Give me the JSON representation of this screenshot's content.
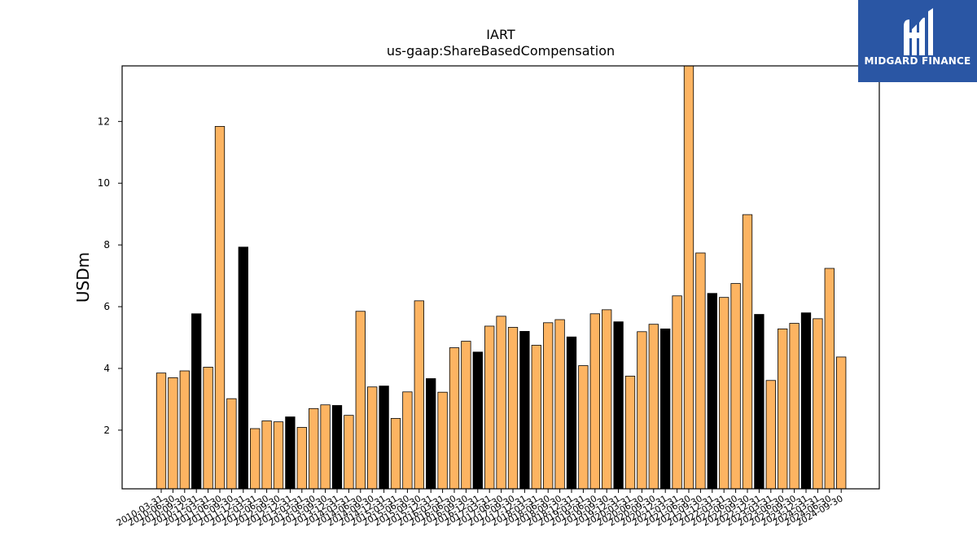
{
  "chart_data": {
    "type": "bar",
    "title": "IART",
    "subtitle": "us-gaap:ShareBasedCompensation",
    "xlabel": "",
    "ylabel": "USDm",
    "ylim": [
      0.1,
      13.8
    ],
    "yticks": [
      2,
      4,
      6,
      8,
      10,
      12
    ],
    "grid": false,
    "legend": "none",
    "colors": {
      "quarter": "#fdb462",
      "year_end": "#000000",
      "edge": "#000000"
    },
    "categories": [
      "2010-03-31",
      "2010-06-30",
      "2010-09-30",
      "2010-12-31",
      "2011-03-31",
      "2011-06-30",
      "2011-09-30",
      "2011-12-31",
      "2012-03-31",
      "2012-06-30",
      "2012-09-30",
      "2012-12-31",
      "2013-03-31",
      "2013-06-30",
      "2013-09-30",
      "2013-12-31",
      "2014-03-31",
      "2014-06-30",
      "2014-09-30",
      "2014-12-31",
      "2015-03-31",
      "2015-06-30",
      "2015-09-30",
      "2015-12-31",
      "2016-03-31",
      "2016-06-30",
      "2016-09-30",
      "2016-12-31",
      "2017-03-31",
      "2017-06-30",
      "2017-09-30",
      "2017-12-31",
      "2018-03-31",
      "2018-06-30",
      "2018-09-30",
      "2018-12-31",
      "2019-03-31",
      "2019-06-30",
      "2019-09-30",
      "2019-12-31",
      "2020-03-31",
      "2020-06-30",
      "2020-09-30",
      "2020-12-31",
      "2021-03-31",
      "2021-06-30",
      "2021-09-30",
      "2021-12-31",
      "2022-03-31",
      "2022-06-30",
      "2022-09-30",
      "2022-12-31",
      "2023-03-31",
      "2023-06-30",
      "2023-09-30",
      "2023-12-31",
      "2024-03-31",
      "2024-06-30",
      "2024-09-30"
    ],
    "values": [
      3.85,
      3.7,
      3.92,
      5.77,
      4.04,
      11.84,
      3.02,
      7.93,
      2.05,
      2.3,
      2.27,
      2.43,
      2.09,
      2.7,
      2.82,
      2.8,
      2.48,
      5.85,
      3.4,
      3.43,
      2.38,
      3.24,
      6.19,
      3.67,
      3.23,
      4.67,
      4.88,
      4.53,
      5.37,
      5.69,
      5.33,
      5.2,
      4.75,
      5.48,
      5.58,
      5.02,
      4.09,
      5.77,
      5.9,
      5.51,
      3.75,
      5.19,
      5.43,
      5.28,
      6.35,
      13.8,
      7.74,
      6.43,
      6.3,
      6.75,
      8.98,
      5.75,
      3.61,
      5.28,
      5.46,
      5.8,
      5.61,
      7.24,
      4.37
    ]
  },
  "logo": {
    "text": "MIDGARD FINANCE"
  }
}
